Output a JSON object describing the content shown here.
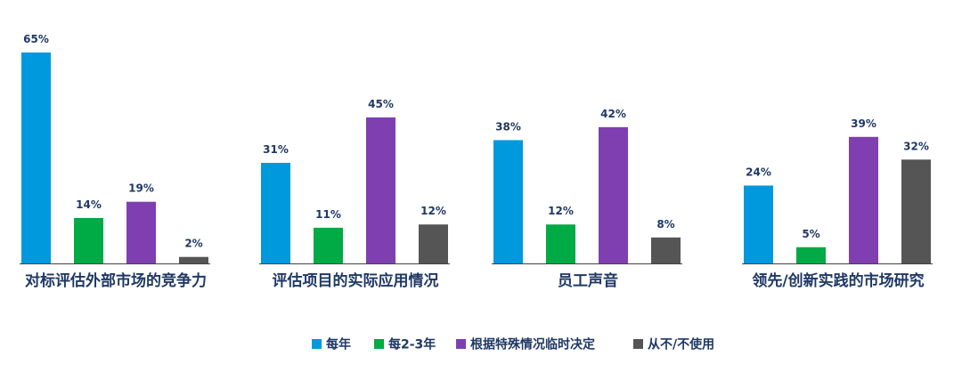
{
  "chart_data": {
    "type": "bar",
    "categories": [
      "对标评估外部市场的竞争力",
      "评估项目的实际应用情况",
      "员工声音",
      "领先/创新实践的市场研究"
    ],
    "series": [
      {
        "name": "每年",
        "color": "#0099dd",
        "values": [
          65,
          31,
          38,
          24
        ]
      },
      {
        "name": "每2-3年",
        "color": "#00aa44",
        "values": [
          14,
          11,
          12,
          5
        ]
      },
      {
        "name": "根据特殊情况临时决定",
        "color": "#7f3fb0",
        "values": [
          19,
          45,
          42,
          39
        ]
      },
      {
        "name": "从不/不使用",
        "color": "#555555",
        "values": [
          2,
          12,
          8,
          32
        ]
      }
    ],
    "value_labels": [
      [
        "65%",
        "31%",
        "38%",
        "24%"
      ],
      [
        "14%",
        "11%",
        "12%",
        "5%"
      ],
      [
        "19%",
        "45%",
        "42%",
        "39%"
      ],
      [
        "2%",
        "12%",
        "8%",
        "32%"
      ]
    ],
    "ylim": [
      0,
      65
    ],
    "grid": false,
    "legend_position": "bottom",
    "baseline_color": "#444444"
  }
}
